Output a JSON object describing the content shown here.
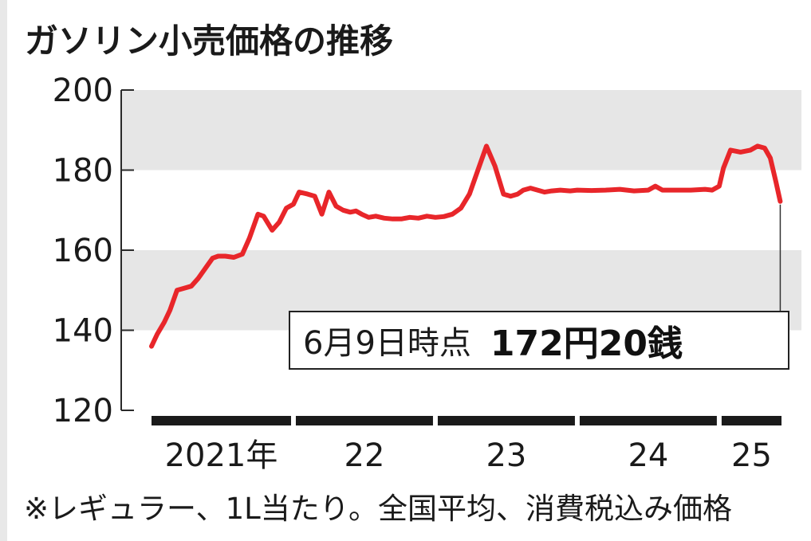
{
  "colors": {
    "line": "#e8262a",
    "band": "#e6e6e6",
    "axis": "#2a2a2a",
    "year_bar": "#1a1a1a"
  },
  "chart_data": {
    "type": "line",
    "title": "ガソリン小売価格の推移",
    "note": "※レギュラー、1L当たり。全国平均、消費税込み価格",
    "ylim": [
      120,
      200
    ],
    "yticks": [
      "200",
      "180",
      "160",
      "140",
      "120"
    ],
    "grid": "alternating horizontal bands",
    "years": [
      "2021年",
      "22",
      "23",
      "24",
      "25"
    ],
    "xlim": [
      2021.0,
      2025.45
    ],
    "callout": {
      "date": "6月9日時点",
      "price": "172円20銭"
    },
    "series": [
      {
        "x": [
          2021.0,
          2021.04,
          2021.09,
          2021.13,
          2021.18,
          2021.23,
          2021.28,
          2021.33,
          2021.38,
          2021.43,
          2021.47,
          2021.52,
          2021.58,
          2021.64,
          2021.69,
          2021.75,
          2021.79,
          2021.85,
          2021.9,
          2021.95,
          2022.0,
          2022.04,
          2022.1,
          2022.15,
          2022.2,
          2022.25,
          2022.3,
          2022.35,
          2022.4,
          2022.44,
          2022.48,
          2022.53,
          2022.58,
          2022.64,
          2022.7,
          2022.76,
          2022.82,
          2022.88,
          2022.94,
          2023.0,
          2023.06,
          2023.12,
          2023.18,
          2023.24,
          2023.3,
          2023.36,
          2023.42,
          2023.48,
          2023.53,
          2023.58,
          2023.62,
          2023.67,
          2023.72,
          2023.77,
          2023.82,
          2023.88,
          2023.95,
          2024.0,
          2024.1,
          2024.2,
          2024.3,
          2024.4,
          2024.5,
          2024.55,
          2024.6,
          2024.7,
          2024.8,
          2024.9,
          2024.95,
          2025.0,
          2025.03,
          2025.08,
          2025.15,
          2025.22,
          2025.27,
          2025.32,
          2025.36,
          2025.4,
          2025.43
        ],
        "y": [
          136.0,
          139.0,
          142.0,
          145.0,
          150.0,
          150.5,
          151.0,
          153.0,
          155.5,
          158.0,
          158.5,
          158.5,
          158.2,
          159.0,
          163.0,
          169.0,
          168.5,
          165.0,
          167.0,
          170.5,
          171.5,
          174.5,
          174.0,
          173.5,
          169.0,
          174.5,
          171.0,
          170.0,
          169.5,
          169.8,
          169.0,
          168.2,
          168.5,
          168.0,
          167.8,
          167.8,
          168.2,
          168.0,
          168.5,
          168.2,
          168.4,
          169.0,
          170.5,
          174.0,
          180.0,
          186.0,
          181.0,
          174.0,
          173.5,
          174.0,
          175.0,
          175.5,
          175.0,
          174.5,
          174.8,
          175.0,
          174.8,
          175.0,
          174.9,
          175.0,
          175.2,
          174.8,
          175.0,
          176.0,
          175.0,
          175.0,
          175.0,
          175.2,
          175.0,
          176.0,
          180.5,
          185.0,
          184.5,
          185.0,
          186.0,
          185.5,
          183.0,
          177.0,
          172.2
        ]
      }
    ]
  }
}
